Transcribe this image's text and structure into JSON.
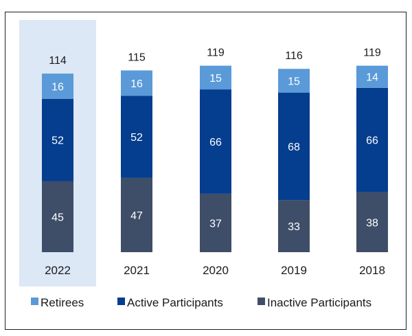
{
  "chart_data": {
    "type": "bar",
    "stacked": true,
    "categories": [
      "2022",
      "2021",
      "2020",
      "2019",
      "2018"
    ],
    "series": [
      {
        "name": "Inactive Participants",
        "values": [
          45,
          47,
          37,
          33,
          38
        ],
        "color": "#3e4e68"
      },
      {
        "name": "Active Participants",
        "values": [
          52,
          52,
          66,
          68,
          66
        ],
        "color": "#053d8f"
      },
      {
        "name": "Retirees",
        "values": [
          16,
          16,
          15,
          15,
          14
        ],
        "color": "#5a9ad8"
      }
    ],
    "totals": [
      114,
      115,
      119,
      116,
      119
    ],
    "highlight_category": "2022",
    "highlight_color": "#dce8f5",
    "legend_order": [
      "Retirees",
      "Active Participants",
      "Inactive Participants"
    ],
    "legend_position": "bottom",
    "grid": false
  }
}
